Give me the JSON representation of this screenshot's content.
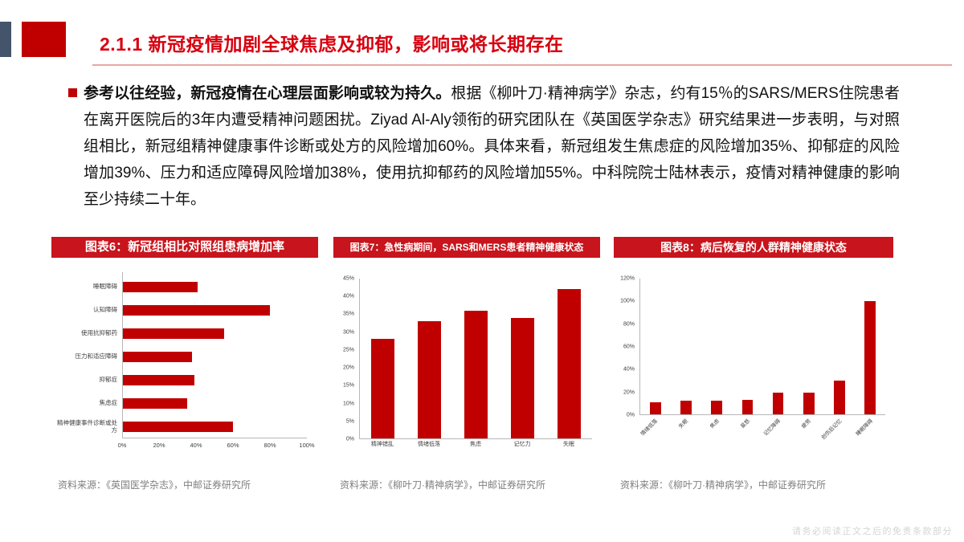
{
  "header": {
    "title": "2.1.1 新冠疫情加剧全球焦虑及抑郁，影响或将长期存在"
  },
  "body": {
    "bullet_lead": "参考以往经验，新冠疫情在心理层面影响或较为持久。",
    "bullet_rest": "根据《柳叶刀·精神病学》杂志，约有15％的SARS/MERS住院患者在离开医院后的3年内遭受精神问题困扰。Ziyad Al-Aly领衔的研究团队在《英国医学杂志》研究结果进一步表明，与对照组相比，新冠组精神健康事件诊断或处方的风险增加60%。具体来看，新冠组发生焦虑症的风险增加35%、抑郁症的风险增加39%、压力和适应障碍风险增加38%，使用抗抑郁药的风险增加55%。中科院院士陆林表示，疫情对精神健康的影响至少持续二十年。"
  },
  "chart_data": [
    {
      "type": "bar",
      "orientation": "horizontal",
      "title": "图表6：新冠组相比对照组患病增加率",
      "categories": [
        "睡眠障碍",
        "认知障碍",
        "使用抗抑郁药",
        "压力和适应障碍",
        "抑郁症",
        "焦虑症",
        "精神健康事件诊断或处方"
      ],
      "values": [
        41,
        80,
        55,
        38,
        39,
        35,
        60
      ],
      "unit": "%",
      "xlim": [
        0,
        100
      ],
      "xticks": [
        "0%",
        "20%",
        "40%",
        "60%",
        "80%",
        "100%"
      ],
      "grid": false,
      "source": "资料来源：《英国医学杂志》，中邮证券研究所"
    },
    {
      "type": "bar",
      "orientation": "vertical",
      "title": "图表7：急性病期间，SARS和MERS患者精神健康状态",
      "categories": [
        "精神错乱",
        "情绪低落",
        "焦虑",
        "记忆力",
        "失眠"
      ],
      "values": [
        28,
        33,
        36,
        34,
        42
      ],
      "unit": "%",
      "ylim": [
        0,
        45
      ],
      "yticks": [
        0,
        5,
        10,
        15,
        20,
        25,
        30,
        35,
        40,
        45
      ],
      "grid": false,
      "source": "资料来源：《柳叶刀·精神病学》，中邮证券研究所"
    },
    {
      "type": "bar",
      "orientation": "vertical",
      "title": "图表8：病后恢复的人群精神健康状态",
      "categories": [
        "情绪低落",
        "失眠",
        "焦虑",
        "易怒",
        "记忆障碍",
        "疲劳",
        "创伤后记忆",
        "睡眠障碍"
      ],
      "values": [
        11,
        12,
        12,
        13,
        19,
        19,
        30,
        100
      ],
      "unit": "%",
      "ylim": [
        0,
        120
      ],
      "yticks": [
        0,
        20,
        40,
        60,
        80,
        100,
        120
      ],
      "rotate_labels": true,
      "grid": false,
      "source": "资料来源：《柳叶刀·精神病学》，中邮证券研究所"
    }
  ],
  "footer": {
    "watermark": "请务必阅读正文之后的免责条款部分"
  },
  "colors": {
    "title_red": "#d7000f",
    "accent_red": "#c00000",
    "chart_header_red": "#c8141c",
    "bar_red": "#c00000",
    "dark_accent": "#44546a",
    "source_gray": "#7f7f7f"
  }
}
